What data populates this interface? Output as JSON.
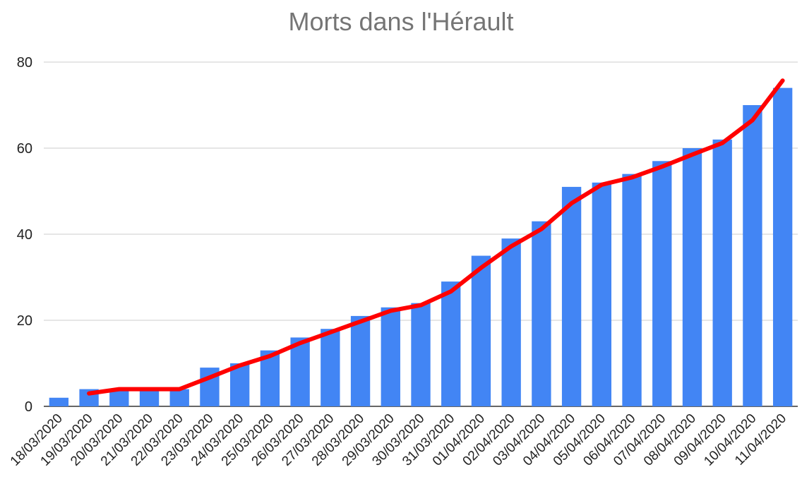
{
  "chart_data": {
    "type": "bar",
    "title": "Morts dans l'Hérault",
    "xlabel": "",
    "ylabel": "",
    "ylim": [
      0,
      80
    ],
    "yticks": [
      0,
      20,
      40,
      60,
      80
    ],
    "grid": true,
    "categories": [
      "18/03/2020",
      "19/03/2020",
      "20/03/2020",
      "21/03/2020",
      "22/03/2020",
      "23/03/2020",
      "24/03/2020",
      "25/03/2020",
      "26/03/2020",
      "27/03/2020",
      "28/03/2020",
      "29/03/2020",
      "30/03/2020",
      "31/03/2020",
      "01/04/2020",
      "02/04/2020",
      "03/04/2020",
      "04/04/2020",
      "05/04/2020",
      "06/04/2020",
      "07/04/2020",
      "08/04/2020",
      "09/04/2020",
      "10/04/2020",
      "11/04/2020"
    ],
    "values": [
      2,
      4,
      4,
      4,
      4,
      9,
      10,
      13,
      16,
      18,
      21,
      23,
      24,
      29,
      35,
      39,
      43,
      51,
      52,
      54,
      57,
      60,
      62,
      70,
      74
    ],
    "trend_line": [
      null,
      3,
      4,
      4,
      4,
      6.7,
      9.5,
      11.7,
      14.7,
      17.2,
      19.7,
      22.2,
      23.5,
      26.7,
      32.2,
      37.2,
      41.2,
      47.2,
      51.5,
      53.2,
      55.7,
      58.5,
      61.2,
      66.5,
      75.7
    ],
    "colors": {
      "bars": "#4285f4",
      "trend": "#ff0000",
      "grid": "#cccccc",
      "title": "#757575"
    }
  }
}
